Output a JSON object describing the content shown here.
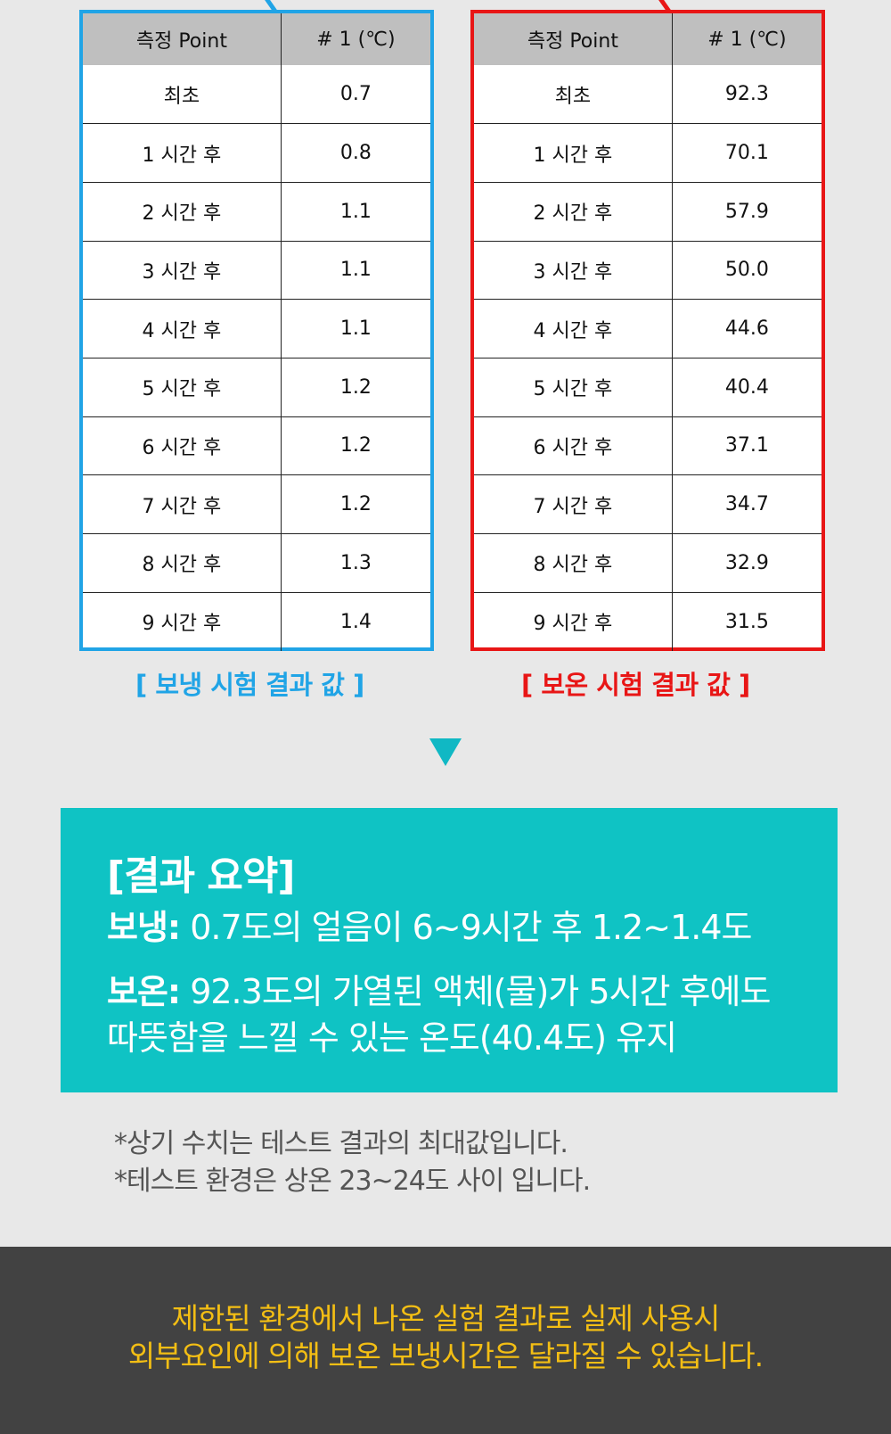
{
  "cold_table": {
    "headers": [
      "측정 Point",
      "# 1 (℃)"
    ],
    "rows": [
      [
        "최초",
        "0.7"
      ],
      [
        "1 시간 후",
        "0.8"
      ],
      [
        "2 시간 후",
        "1.1"
      ],
      [
        "3 시간 후",
        "1.1"
      ],
      [
        "4 시간 후",
        "1.1"
      ],
      [
        "5 시간 후",
        "1.2"
      ],
      [
        "6 시간 후",
        "1.2"
      ],
      [
        "7 시간 후",
        "1.2"
      ],
      [
        "8 시간 후",
        "1.3"
      ],
      [
        "9 시간 후",
        "1.4"
      ]
    ],
    "caption": "[ 보냉 시험 결과 값 ]"
  },
  "hot_table": {
    "headers": [
      "측정 Point",
      "# 1 (℃)"
    ],
    "rows": [
      [
        "최초",
        "92.3"
      ],
      [
        "1 시간 후",
        "70.1"
      ],
      [
        "2 시간 후",
        "57.9"
      ],
      [
        "3 시간 후",
        "50.0"
      ],
      [
        "4 시간 후",
        "44.6"
      ],
      [
        "5 시간 후",
        "40.4"
      ],
      [
        "6 시간 후",
        "37.1"
      ],
      [
        "7 시간 후",
        "34.7"
      ],
      [
        "8 시간 후",
        "32.9"
      ],
      [
        "9 시간 후",
        "31.5"
      ]
    ],
    "caption": "[ 보온 시험 결과 값 ]"
  },
  "summary": {
    "heading": "[결과 요약]",
    "cold_label": "보냉:",
    "cold_text": " 0.7도의 얼음이 6~9시간 후 1.2~1.4도",
    "hot_label": "보온:",
    "hot_text_1": " 92.3도의 가열된 액체(물)가 5시간 후에도",
    "hot_text_2": "따뜻함을 느낄 수 있는 온도(40.4도) 유지"
  },
  "notes": [
    "*상기 수치는 테스트 결과의 최대값입니다.",
    "*테스트 환경은 상온 23~24도 사이 입니다."
  ],
  "footer": {
    "line1": "제한된 환경에서 나온 실험 결과로 실제 사용시",
    "line2": "외부요인에 의해 보온 보냉시간은 달라질 수 있습니다."
  },
  "colors": {
    "cold_accent": "#20a4e6",
    "hot_accent": "#e81616",
    "summary_bg": "#0fc3c4",
    "footer_bg": "#424242",
    "footer_text": "#f3be14"
  }
}
